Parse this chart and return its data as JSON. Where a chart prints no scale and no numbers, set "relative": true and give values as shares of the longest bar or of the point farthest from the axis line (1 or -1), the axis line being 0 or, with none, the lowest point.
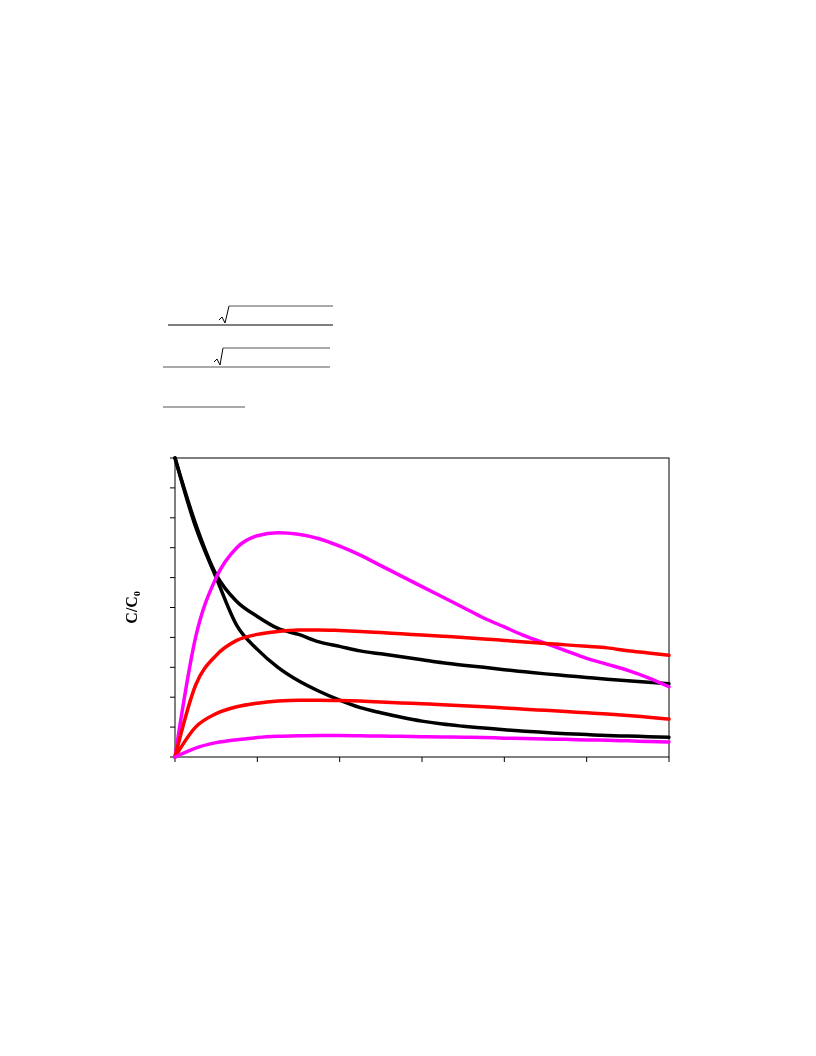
{
  "chart_data": {
    "type": "line",
    "ylabel": "C/C₀",
    "relative": true,
    "marker": "none",
    "line_style": "solid",
    "categories": [
      null,
      null,
      null,
      null,
      null,
      null,
      null,
      null,
      null,
      null,
      null,
      null,
      null,
      null,
      null,
      null,
      null,
      null,
      null,
      null,
      null,
      null,
      null,
      null,
      null
    ],
    "series": [
      {
        "color": "#000000",
        "values": [
          1,
          0.78,
          0.61,
          0.52,
          0.47,
          0.43,
          0.41,
          0.385,
          0.37,
          0.355,
          0.345,
          0.335,
          0.325,
          0.315,
          0.307,
          0.3,
          0.292,
          0.285,
          0.278,
          0.272,
          0.266,
          0.26,
          0.255,
          0.25,
          0.245
        ]
      },
      {
        "color": "#000000",
        "values": [
          1,
          0.77,
          0.6,
          0.44,
          0.36,
          0.3,
          0.255,
          0.22,
          0.19,
          0.165,
          0.148,
          0.133,
          0.12,
          0.11,
          0.103,
          0.097,
          0.091,
          0.086,
          0.082,
          0.078,
          0.075,
          0.072,
          0.07,
          0.068,
          0.066
        ]
      },
      {
        "color": "#ff00ff",
        "values": [
          0,
          0.4,
          0.6,
          0.7,
          0.74,
          0.75,
          0.745,
          0.73,
          0.705,
          0.675,
          0.64,
          0.605,
          0.57,
          0.535,
          0.5,
          0.465,
          0.435,
          0.405,
          0.38,
          0.355,
          0.33,
          0.31,
          0.29,
          0.265,
          0.235
        ]
      },
      {
        "color": "#ff0000",
        "values": [
          0,
          0.24,
          0.34,
          0.39,
          0.41,
          0.42,
          0.425,
          0.425,
          0.423,
          0.42,
          0.416,
          0.412,
          0.408,
          0.404,
          0.4,
          0.395,
          0.39,
          0.385,
          0.38,
          0.375,
          0.37,
          0.365,
          0.355,
          0.348,
          0.34
        ]
      },
      {
        "color": "#ff0000",
        "values": [
          0,
          0.1,
          0.145,
          0.168,
          0.18,
          0.187,
          0.19,
          0.19,
          0.189,
          0.187,
          0.184,
          0.181,
          0.178,
          0.175,
          0.171,
          0.168,
          0.164,
          0.16,
          0.156,
          0.152,
          0.148,
          0.144,
          0.139,
          0.133,
          0.127
        ]
      },
      {
        "color": "#ff00ff",
        "values": [
          0,
          0.03,
          0.048,
          0.058,
          0.065,
          0.069,
          0.071,
          0.072,
          0.072,
          0.071,
          0.07,
          0.069,
          0.068,
          0.067,
          0.066,
          0.065,
          0.063,
          0.062,
          0.06,
          0.059,
          0.057,
          0.056,
          0.054,
          0.052,
          0.05
        ]
      }
    ]
  }
}
